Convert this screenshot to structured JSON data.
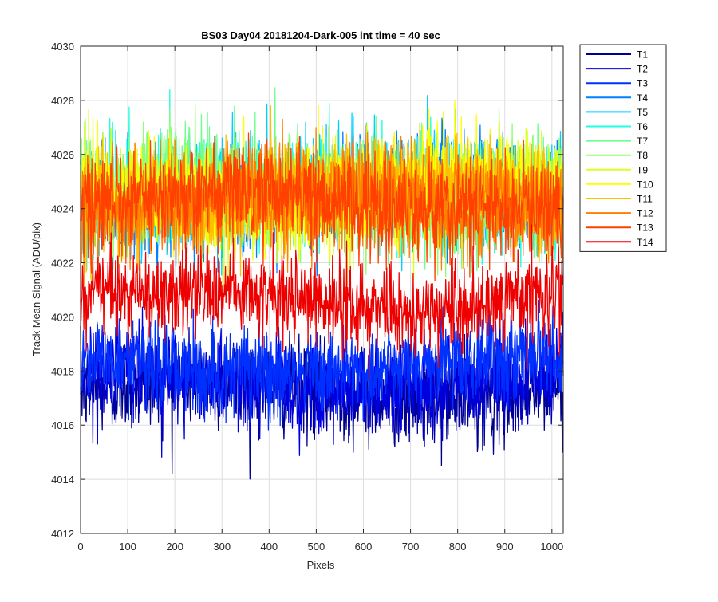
{
  "chart_data": {
    "type": "line",
    "title": "BS03 Day04 20181204-Dark-005 int time = 40 sec",
    "xlabel": "Pixels",
    "ylabel": "Track Mean Signal (ADU/pix)",
    "xlim": [
      0,
      1024
    ],
    "ylim": [
      4012,
      4030
    ],
    "xticks": [
      "0",
      "100",
      "200",
      "300",
      "400",
      "500",
      "600",
      "700",
      "800",
      "900",
      "1000"
    ],
    "yticks": [
      "4012",
      "4014",
      "4016",
      "4018",
      "4020",
      "4022",
      "4024",
      "4026",
      "4028",
      "4030"
    ],
    "grid": true,
    "legend_position": "outside-right-top",
    "x_points": 1024,
    "series": [
      {
        "name": "T1",
        "color": "#00008F",
        "mean": 4017.3,
        "noise": 0.85
      },
      {
        "name": "T2",
        "color": "#0000DF",
        "mean": 4017.6,
        "noise": 0.85
      },
      {
        "name": "T3",
        "color": "#0030FF",
        "mean": 4018.2,
        "noise": 0.85
      },
      {
        "name": "T4",
        "color": "#0080FF",
        "mean": 4024.5,
        "noise": 0.95
      },
      {
        "name": "T5",
        "color": "#00CFFF",
        "mean": 4024.6,
        "noise": 0.95
      },
      {
        "name": "T6",
        "color": "#20FFDF",
        "mean": 4024.6,
        "noise": 0.95
      },
      {
        "name": "T7",
        "color": "#70FF8F",
        "mean": 4024.6,
        "noise": 0.95
      },
      {
        "name": "T8",
        "color": "#8FFF70",
        "mean": 4024.5,
        "noise": 0.95
      },
      {
        "name": "T9",
        "color": "#DFFF20",
        "mean": 4024.5,
        "noise": 0.95
      },
      {
        "name": "T10",
        "color": "#FFFF00",
        "mean": 4024.6,
        "noise": 0.95
      },
      {
        "name": "T11",
        "color": "#FFBF00",
        "mean": 4024.5,
        "noise": 0.95
      },
      {
        "name": "T12",
        "color": "#FF7F00",
        "mean": 4024.3,
        "noise": 0.95
      },
      {
        "name": "T13",
        "color": "#FF4000",
        "mean": 4024.2,
        "noise": 0.95
      },
      {
        "name": "T14",
        "color": "#EF0000",
        "mean": 4020.6,
        "noise": 0.8
      }
    ]
  }
}
